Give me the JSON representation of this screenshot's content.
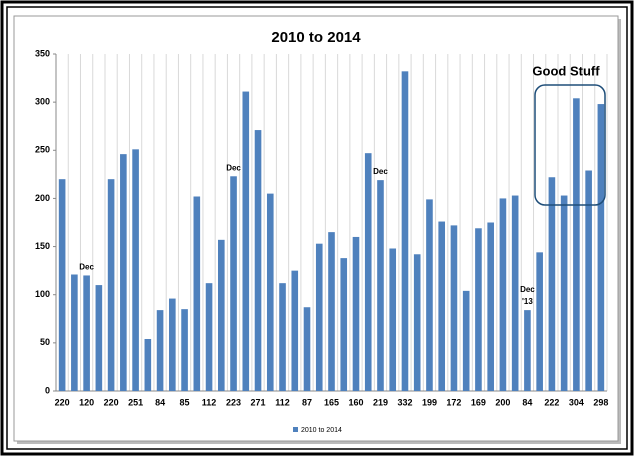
{
  "chart_data": {
    "type": "bar",
    "title": "2010 to 2014",
    "categories": [
      "220",
      null,
      "120",
      null,
      "220",
      null,
      "251",
      null,
      "84",
      null,
      "85",
      null,
      "112",
      null,
      "223",
      null,
      "271",
      null,
      "112",
      null,
      "87",
      null,
      "165",
      null,
      "160",
      null,
      "219",
      null,
      "332",
      null,
      "199",
      null,
      "172",
      null,
      "169",
      null,
      "200",
      null,
      "84",
      null,
      "222",
      null,
      "304",
      null,
      "298"
    ],
    "series": [
      {
        "name": "2010 to 2014",
        "color": "#4f81bd",
        "values": [
          220,
          121,
          120,
          110,
          220,
          246,
          251,
          54,
          84,
          96,
          85,
          202,
          112,
          157,
          223,
          311,
          271,
          205,
          112,
          125,
          87,
          153,
          165,
          138,
          160,
          247,
          219,
          148,
          332,
          142,
          199,
          176,
          172,
          104,
          169,
          175,
          200,
          203,
          84,
          144,
          222,
          203,
          304,
          229,
          298
        ]
      }
    ],
    "ylim": [
      0,
      350
    ],
    "yticks": [
      0,
      50,
      100,
      150,
      200,
      250,
      300,
      350
    ],
    "grid": true,
    "legend": "bottom",
    "annotations": [
      "Dec",
      "Dec",
      "Dec",
      "Dec",
      "'13",
      "Good Stuff"
    ]
  }
}
